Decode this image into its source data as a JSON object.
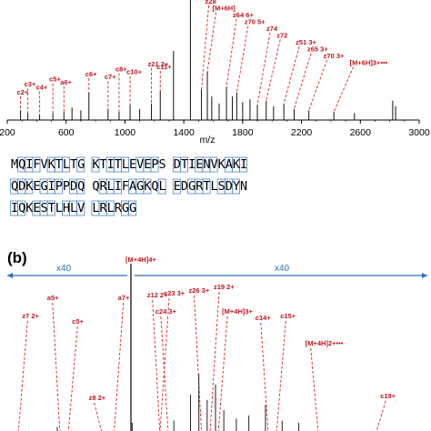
{
  "chart_data": [
    {
      "panel": "",
      "type": "bar",
      "xlabel": "m/z",
      "xlim": [
        200,
        3000
      ],
      "x_ticks": [
        200,
        600,
        1000,
        1400,
        1800,
        2200,
        2600,
        3000
      ],
      "peaks": [
        {
          "mz": 290,
          "rel": 0.07
        },
        {
          "mz": 340,
          "rel": 0.05
        },
        {
          "mz": 420,
          "rel": 0.04
        },
        {
          "mz": 510,
          "rel": 0.05
        },
        {
          "mz": 585,
          "rel": 0.06
        },
        {
          "mz": 640,
          "rel": 0.09
        },
        {
          "mz": 700,
          "rel": 0.07
        },
        {
          "mz": 755,
          "rel": 0.2
        },
        {
          "mz": 885,
          "rel": 0.08
        },
        {
          "mz": 960,
          "rel": 0.06
        },
        {
          "mz": 1035,
          "rel": 0.11
        },
        {
          "mz": 1100,
          "rel": 0.08
        },
        {
          "mz": 1180,
          "rel": 0.12
        },
        {
          "mz": 1240,
          "rel": 0.21
        },
        {
          "mz": 1330,
          "rel": 0.5
        },
        {
          "mz": 1445,
          "rel": 1.0
        },
        {
          "mz": 1520,
          "rel": 0.22
        },
        {
          "mz": 1560,
          "rel": 0.35
        },
        {
          "mz": 1590,
          "rel": 0.17
        },
        {
          "mz": 1640,
          "rel": 0.12
        },
        {
          "mz": 1690,
          "rel": 0.24
        },
        {
          "mz": 1730,
          "rel": 0.17
        },
        {
          "mz": 1760,
          "rel": 0.2
        },
        {
          "mz": 1800,
          "rel": 0.13
        },
        {
          "mz": 1850,
          "rel": 0.15
        },
        {
          "mz": 1900,
          "rel": 0.11
        },
        {
          "mz": 1960,
          "rel": 0.14
        },
        {
          "mz": 2010,
          "rel": 0.1
        },
        {
          "mz": 2080,
          "rel": 0.12
        },
        {
          "mz": 2150,
          "rel": 0.08
        },
        {
          "mz": 2250,
          "rel": 0.07
        },
        {
          "mz": 2420,
          "rel": 0.06
        },
        {
          "mz": 2560,
          "rel": 0.05
        },
        {
          "mz": 2820,
          "rel": 0.14
        },
        {
          "mz": 2840,
          "rel": 0.1
        }
      ],
      "annotations": [
        {
          "text": "c2+",
          "mz": 290
        },
        {
          "text": "c3+",
          "mz": 340
        },
        {
          "text": "c4+",
          "mz": 420
        },
        {
          "text": "c5+",
          "mz": 510
        },
        {
          "text": "a6+",
          "mz": 585
        },
        {
          "text": "c6+",
          "mz": 755
        },
        {
          "text": "c7+",
          "mz": 885
        },
        {
          "text": "c8+",
          "mz": 960
        },
        {
          "text": "c10+",
          "mz": 1035
        },
        {
          "text": "z21 2+",
          "mz": 1180
        },
        {
          "text": "c11+",
          "mz": 1240
        },
        {
          "text": "z28",
          "mz": 1520
        },
        {
          "text": "[M+6H]",
          "mz": 1560
        },
        {
          "text": "z64 6+",
          "mz": 1690
        },
        {
          "text": "z70 5+",
          "mz": 1760
        },
        {
          "text": "z74",
          "mz": 1900
        },
        {
          "text": "z72",
          "mz": 1960
        },
        {
          "text": "z51 3+",
          "mz": 2080
        },
        {
          "text": "z65 3+",
          "mz": 2150
        },
        {
          "text": "z70 3+",
          "mz": 2250
        },
        {
          "text": "[M+6H]3+•••",
          "mz": 2420
        }
      ]
    },
    {
      "panel": "(b)",
      "type": "bar",
      "zoom_left": "x40",
      "zoom_right": "x40",
      "precursor_label": "[M+4H]4+",
      "peaks": [
        {
          "pos": 0.12,
          "rel": 0.04
        },
        {
          "pos": 0.3,
          "rel": 0.08
        },
        {
          "pos": 0.4,
          "rel": 0.1
        },
        {
          "pos": 0.44,
          "rel": 0.35
        },
        {
          "pos": 0.46,
          "rel": 0.55
        },
        {
          "pos": 0.48,
          "rel": 0.3
        },
        {
          "pos": 0.5,
          "rel": 0.45
        },
        {
          "pos": 0.52,
          "rel": 0.2
        },
        {
          "pos": 0.55,
          "rel": 0.12
        },
        {
          "pos": 0.58,
          "rel": 0.15
        },
        {
          "pos": 0.62,
          "rel": 0.25
        },
        {
          "pos": 0.66,
          "rel": 0.1
        },
        {
          "pos": 0.7,
          "rel": 0.08
        }
      ],
      "annotations": [
        {
          "text": "z7 2+",
          "mz": 0.04
        },
        {
          "text": "a5+",
          "mz": 0.1
        },
        {
          "text": "c5+",
          "mz": 0.16
        },
        {
          "text": "z8 2+",
          "mz": 0.2
        },
        {
          "text": "a7+",
          "mz": 0.27
        },
        {
          "text": "z12 2+",
          "mz": 0.34
        },
        {
          "text": "c23 3+",
          "mz": 0.38
        },
        {
          "text": "z26 3+",
          "mz": 0.44
        },
        {
          "text": "z19 2+",
          "mz": 0.5
        },
        {
          "text": "c24 3+",
          "mz": 0.36
        },
        {
          "text": "[M+4H]3+",
          "mz": 0.52
        },
        {
          "text": "c14+",
          "mz": 0.6
        },
        {
          "text": "c15+",
          "mz": 0.66
        },
        {
          "text": "[M+4H]2+•••",
          "mz": 0.72
        },
        {
          "text": "c19+",
          "mz": 0.9
        }
      ]
    }
  ],
  "sequence": {
    "rows": [
      "MQIFVKTLTG KTITLEVEPS DTIENVKAKI",
      "QDKEGIPPDQ QRLIFAGKQL EDGRTLSDYN",
      "IQKESTLHLV LRLRGG"
    ]
  }
}
